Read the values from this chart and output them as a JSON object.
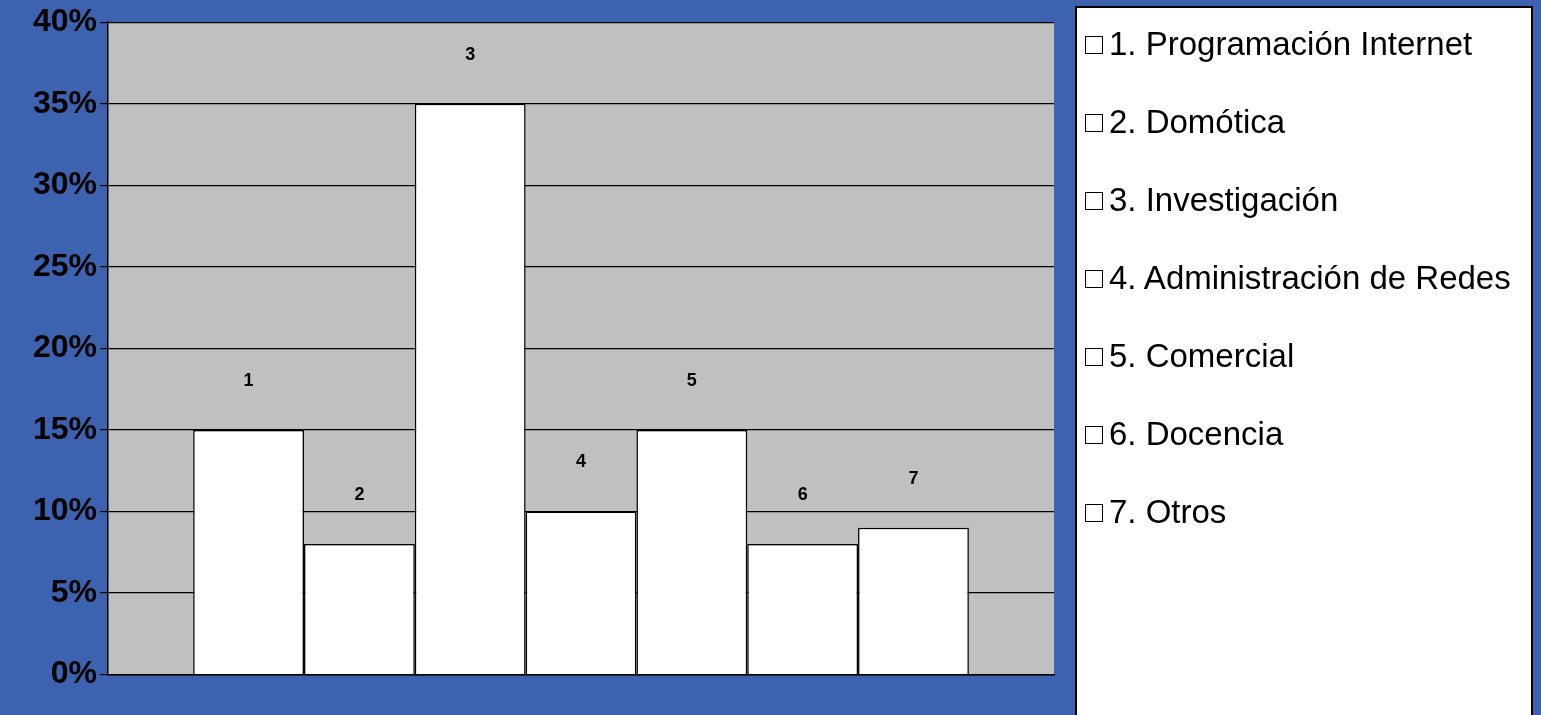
{
  "chart_data": {
    "type": "bar",
    "categories": [
      null
    ],
    "series": [
      {
        "name": "1. Programación Internet",
        "color": "#ffffff",
        "values": [
          15
        ]
      },
      {
        "name": "2. Domótica",
        "color": "#ffffff",
        "values": [
          8
        ]
      },
      {
        "name": "3. Investigación",
        "color": "#ffffff",
        "values": [
          35
        ]
      },
      {
        "name": "4. Administración de Redes",
        "color": "#ffffff",
        "values": [
          10
        ]
      },
      {
        "name": "5. Comercial",
        "color": "#ffffff",
        "values": [
          15
        ]
      },
      {
        "name": "6. Docencia",
        "color": "#ffffff",
        "values": [
          8
        ]
      },
      {
        "name": "7. Otros",
        "color": "#ffffff",
        "values": [
          9
        ]
      }
    ],
    "annotations": [
      "1",
      "2",
      "3",
      "4",
      "5",
      "6",
      "7"
    ],
    "ylim": [
      0,
      40
    ],
    "yticks": [
      {
        "value": 0,
        "label": "0%"
      },
      {
        "value": 5,
        "label": "5%"
      },
      {
        "value": 10,
        "label": "10%"
      },
      {
        "value": 15,
        "label": "15%"
      },
      {
        "value": 20,
        "label": "20%"
      },
      {
        "value": 25,
        "label": "25%"
      },
      {
        "value": 30,
        "label": "30%"
      },
      {
        "value": 35,
        "label": "35%"
      },
      {
        "value": 40,
        "label": "40%"
      }
    ],
    "grid": "y",
    "legend": "right"
  }
}
